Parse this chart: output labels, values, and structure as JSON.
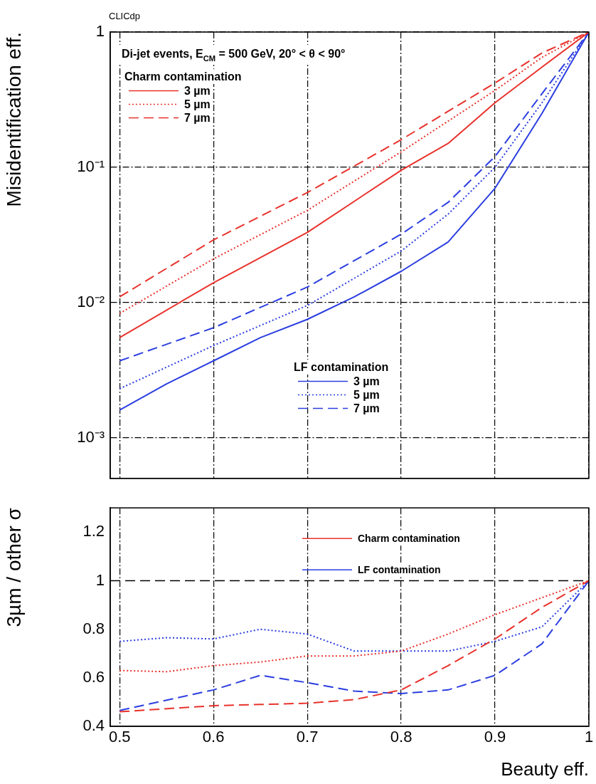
{
  "chart_data": [
    {
      "type": "line",
      "title": "CLICdp",
      "ylabel": "Misidentification eff.",
      "log": "y",
      "grid": true,
      "marker": "none",
      "legend": "top left",
      "tick_labels": "y",
      "annotations": [
        "Di-jet events, E$_{CM}$ = 500 GeV, 20° < θ < 90°",
        "Charm contamination",
        "LF contamination"
      ],
      "xlim": [
        0.49,
        1
      ],
      "xticks": [
        0.5,
        0.6,
        0.7,
        0.8,
        0.9,
        1
      ],
      "ylim": [
        0.0005,
        1
      ],
      "yticks": [
        1,
        {
          "value": 0.1,
          "label": "10⁻¹"
        },
        {
          "value": 0.01,
          "label": "10⁻²"
        },
        {
          "value": 0.001,
          "label": "10⁻³"
        }
      ],
      "series": [
        {
          "name": "3 µm",
          "color": "#e8322b",
          "line_style": "solid",
          "x": [
            0.5,
            0.6,
            0.7,
            0.8,
            0.85,
            0.9,
            0.95,
            1
          ],
          "values": [
            0.0055,
            0.014,
            0.033,
            0.095,
            0.15,
            0.3,
            0.55,
            1
          ]
        },
        {
          "name": "5 µm",
          "color": "#e8322b",
          "line_style": "dotted",
          "x": [
            0.5,
            0.6,
            0.7,
            0.8,
            0.9,
            0.95,
            1
          ],
          "values": [
            0.0083,
            0.021,
            0.048,
            0.13,
            0.37,
            0.65,
            1
          ]
        },
        {
          "name": "7 µm",
          "color": "#e8322b",
          "line_style": "dashed",
          "x": [
            0.5,
            0.6,
            0.7,
            0.8,
            0.9,
            0.95,
            1
          ],
          "values": [
            0.011,
            0.029,
            0.065,
            0.16,
            0.42,
            0.7,
            1
          ]
        },
        {
          "name": "3 µm",
          "color": "#2b3ee0",
          "line_style": "solid",
          "x": [
            0.5,
            0.55,
            0.6,
            0.65,
            0.7,
            0.75,
            0.8,
            0.85,
            0.9,
            0.95,
            1
          ],
          "values": [
            0.0016,
            0.0025,
            0.0037,
            0.0055,
            0.0075,
            0.011,
            0.017,
            0.028,
            0.07,
            0.25,
            1
          ]
        },
        {
          "name": "5 µm",
          "color": "#2b3ee0",
          "line_style": "dotted",
          "x": [
            0.5,
            0.6,
            0.7,
            0.8,
            0.85,
            0.9,
            0.95,
            1
          ],
          "values": [
            0.0023,
            0.0048,
            0.0095,
            0.024,
            0.045,
            0.1,
            0.3,
            1
          ]
        },
        {
          "name": "7 µm",
          "color": "#2b3ee0",
          "line_style": "dashed",
          "x": [
            0.5,
            0.6,
            0.7,
            0.8,
            0.85,
            0.9,
            0.95,
            1
          ],
          "values": [
            0.0037,
            0.0065,
            0.013,
            0.032,
            0.055,
            0.12,
            0.35,
            1
          ]
        }
      ]
    },
    {
      "type": "line",
      "xlabel": "Beauty eff.",
      "ylabel": "3µm / other σ",
      "grid": "x",
      "marker": "none",
      "annotations": [
        "Charm contamination",
        "LF contamination"
      ],
      "xlim": [
        0.49,
        1
      ],
      "xticks": [
        0.5,
        0.6,
        0.7,
        0.8,
        0.9,
        1
      ],
      "ylim": [
        0.4,
        1.3
      ],
      "yticks": [
        0.4,
        0.6,
        0.8,
        1,
        1.2
      ],
      "ref_lines": [
        {
          "axis": "y",
          "value": 1,
          "color": "#000000",
          "line_style": "dashed"
        }
      ],
      "series": [
        {
          "color": "#e8322b",
          "line_style": "dotted",
          "x": [
            0.5,
            0.55,
            0.6,
            0.65,
            0.7,
            0.75,
            0.8,
            0.85,
            0.9,
            0.95,
            1
          ],
          "values": [
            0.63,
            0.625,
            0.65,
            0.665,
            0.69,
            0.69,
            0.71,
            0.78,
            0.86,
            0.93,
            1
          ]
        },
        {
          "color": "#e8322b",
          "line_style": "dashed",
          "x": [
            0.5,
            0.6,
            0.65,
            0.7,
            0.75,
            0.8,
            0.85,
            0.9,
            0.95,
            1
          ],
          "values": [
            0.46,
            0.485,
            0.49,
            0.495,
            0.51,
            0.55,
            0.65,
            0.76,
            0.89,
            1
          ]
        },
        {
          "color": "#2b3ee0",
          "line_style": "dotted",
          "x": [
            0.5,
            0.55,
            0.6,
            0.65,
            0.7,
            0.75,
            0.8,
            0.85,
            0.9,
            0.95,
            1
          ],
          "values": [
            0.75,
            0.765,
            0.76,
            0.8,
            0.78,
            0.71,
            0.71,
            0.71,
            0.75,
            0.81,
            1
          ]
        },
        {
          "color": "#2b3ee0",
          "line_style": "dashed",
          "x": [
            0.5,
            0.6,
            0.65,
            0.7,
            0.75,
            0.8,
            0.85,
            0.9,
            0.95,
            1
          ],
          "values": [
            0.465,
            0.55,
            0.61,
            0.58,
            0.545,
            0.535,
            0.55,
            0.61,
            0.74,
            1
          ]
        }
      ]
    }
  ]
}
